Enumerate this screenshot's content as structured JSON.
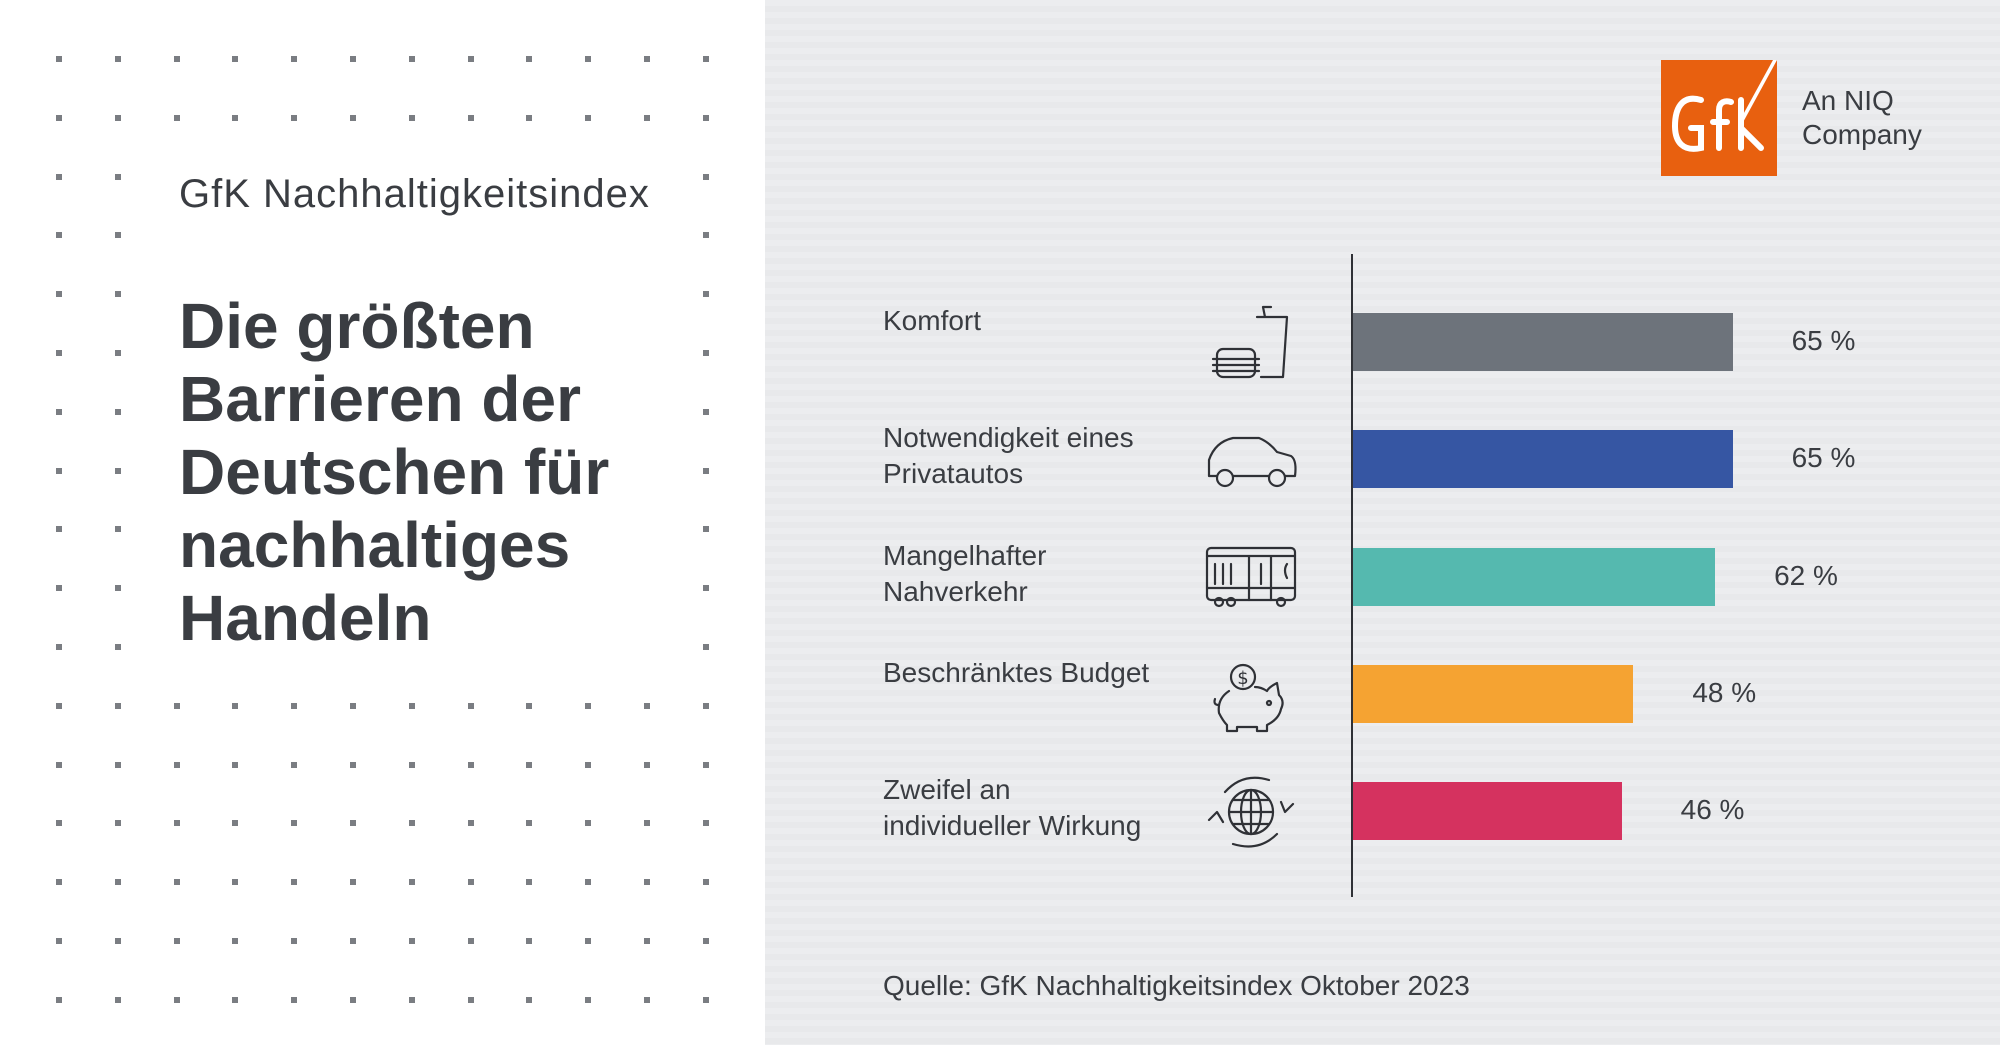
{
  "header": {
    "subtitle": "GfK Nachhaltigkeitsindex",
    "headline": [
      "Die größten",
      "Barrieren der",
      "Deutschen für",
      "nachhaltiges",
      "Handeln"
    ]
  },
  "logo": {
    "text": "GfK",
    "company_line1": "An NIQ",
    "company_line2": "Company",
    "color": "#e8600f"
  },
  "chart_data": {
    "type": "bar",
    "orientation": "horizontal",
    "categories": [
      [
        "Komfort"
      ],
      [
        "Notwendigkeit eines",
        "Privatautos"
      ],
      [
        "Mangelhafter",
        "Nahverkehr"
      ],
      [
        "Beschränktes Budget"
      ],
      [
        "Zweifel an",
        "individueller Wirkung"
      ]
    ],
    "values": [
      65,
      65,
      62,
      48,
      46
    ],
    "value_labels": [
      "65 %",
      "65 %",
      "62 %",
      "48 %",
      "46 %"
    ],
    "colors": [
      "#6d737b",
      "#3656a3",
      "#55b9af",
      "#f5a332",
      "#d5325f"
    ],
    "icons": [
      "fast-food-icon",
      "car-icon",
      "tram-icon",
      "piggy-bank-icon",
      "globe-cycle-icon"
    ],
    "unit": "%"
  },
  "footer": {
    "source": "Quelle:  GfK Nachhaltigkeitsindex Oktober 2023"
  }
}
